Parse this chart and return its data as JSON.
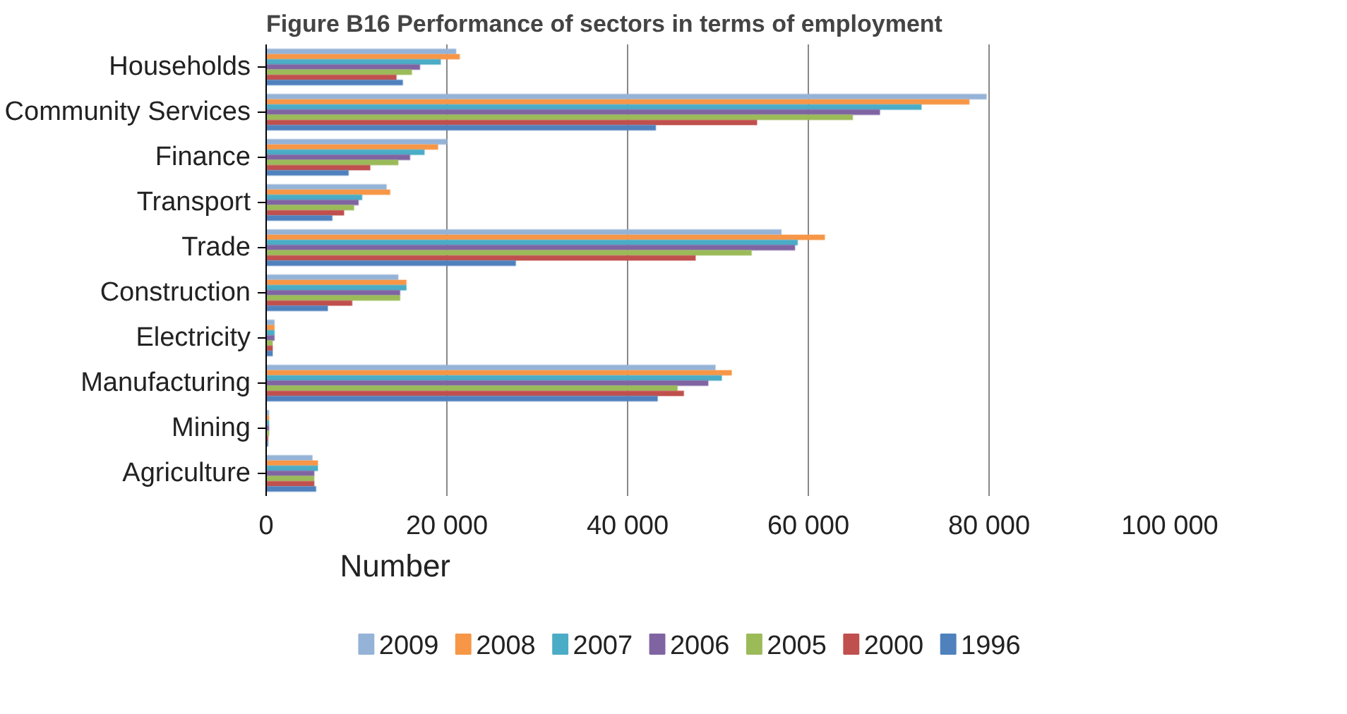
{
  "chart_data": {
    "type": "bar",
    "orientation": "horizontal",
    "title": "Figure B16 Performance of sectors in terms of employment",
    "xlabel": "Number",
    "categories": [
      "Households",
      "Community Services",
      "Finance",
      "Transport",
      "Trade",
      "Construction",
      "Electricity",
      "Manufacturing",
      "Mining",
      "Agriculture"
    ],
    "series": [
      {
        "name": "2009",
        "color": "#95b3d7",
        "values": [
          21000,
          79700,
          20000,
          13300,
          57000,
          14600,
          900,
          49700,
          300,
          5100
        ]
      },
      {
        "name": "2008",
        "color": "#f79646",
        "values": [
          21400,
          77800,
          19000,
          13700,
          61800,
          15500,
          900,
          51500,
          300,
          5700
        ]
      },
      {
        "name": "2007",
        "color": "#4bacc6",
        "values": [
          19300,
          72500,
          17500,
          10600,
          58800,
          15500,
          900,
          50400,
          300,
          5700
        ]
      },
      {
        "name": "2006",
        "color": "#8064a2",
        "values": [
          17000,
          67900,
          15900,
          10200,
          58500,
          14800,
          900,
          48900,
          300,
          5300
        ]
      },
      {
        "name": "2005",
        "color": "#9bbb59",
        "values": [
          16100,
          64900,
          14600,
          9700,
          53700,
          14800,
          700,
          45500,
          300,
          5300
        ]
      },
      {
        "name": "2000",
        "color": "#c0504d",
        "values": [
          14400,
          54300,
          11500,
          8600,
          47500,
          9500,
          700,
          46200,
          200,
          5300
        ]
      },
      {
        "name": "1996",
        "color": "#4f81bd",
        "values": [
          15100,
          43100,
          9100,
          7300,
          27600,
          6800,
          700,
          43300,
          200,
          5500
        ]
      }
    ],
    "xlim": [
      0,
      100000
    ],
    "xticks": [
      0,
      {
        "value": 20000,
        "label": "20 000"
      },
      {
        "value": 40000,
        "label": "40 000"
      },
      {
        "value": 60000,
        "label": "60 000"
      },
      {
        "value": 80000,
        "label": "80 000"
      },
      {
        "value": 100000,
        "label": "100 000"
      }
    ],
    "grid": "x",
    "legend": "bottom"
  }
}
